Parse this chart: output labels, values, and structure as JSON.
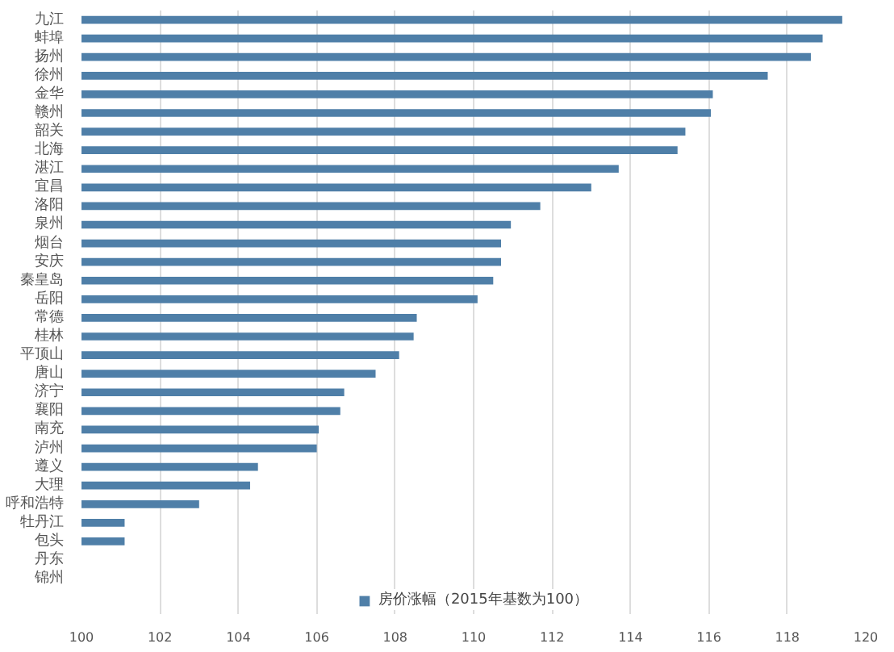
{
  "chart_data": {
    "type": "bar",
    "orientation": "horizontal",
    "categories": [
      "九江",
      "蚌埠",
      "扬州",
      "徐州",
      "金华",
      "赣州",
      "韶关",
      "北海",
      "湛江",
      "宜昌",
      "洛阳",
      "泉州",
      "烟台",
      "安庆",
      "秦皇岛",
      "岳阳",
      "常德",
      "桂林",
      "平顶山",
      "唐山",
      "济宁",
      "襄阳",
      "南充",
      "泸州",
      "遵义",
      "大理",
      "呼和浩特",
      "牡丹江",
      "包头",
      "丹东",
      "锦州"
    ],
    "series": [
      {
        "name": "房价涨幅（2015年基数为100）",
        "color": "#4f7fa8",
        "values": [
          119.4,
          118.9,
          118.6,
          117.5,
          116.1,
          116.05,
          115.4,
          115.2,
          113.7,
          113.0,
          111.7,
          110.95,
          110.7,
          110.7,
          110.5,
          110.1,
          108.55,
          108.47,
          108.1,
          107.5,
          106.7,
          106.6,
          106.05,
          106.0,
          104.5,
          104.3,
          103.0,
          101.1,
          101.1,
          100,
          100
        ]
      }
    ],
    "xlim": [
      100,
      120
    ],
    "xticks": [
      100,
      102,
      104,
      106,
      108,
      110,
      112,
      114,
      116,
      118,
      120
    ],
    "grid": "x",
    "legend": "bottom"
  }
}
